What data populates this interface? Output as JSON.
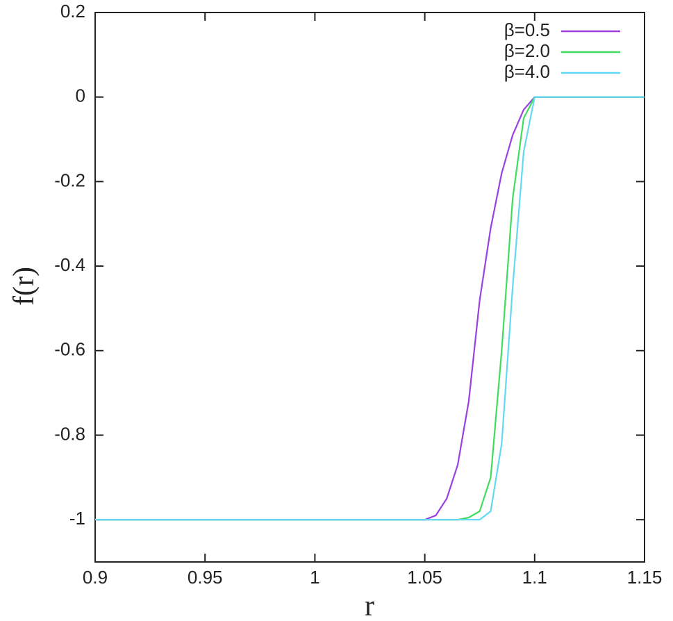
{
  "chart_data": {
    "type": "line",
    "x_label": "r",
    "y_label": "f(r)",
    "x": [
      0.9,
      1.05,
      1.055,
      1.06,
      1.065,
      1.07,
      1.075,
      1.08,
      1.085,
      1.09,
      1.095,
      1.1,
      1.15
    ],
    "series": [
      {
        "name": "β=0.5",
        "color": "#9b3fe0",
        "values": [
          -1,
          -1,
          -0.99,
          -0.95,
          -0.87,
          -0.72,
          -0.48,
          -0.31,
          -0.18,
          -0.09,
          -0.03,
          0,
          0
        ]
      },
      {
        "name": "β=2.0",
        "color": "#3fdc5e",
        "values": [
          -1,
          -1,
          -1,
          -1,
          -1,
          -0.995,
          -0.98,
          -0.9,
          -0.6,
          -0.24,
          -0.05,
          0,
          0
        ]
      },
      {
        "name": "β=4.0",
        "color": "#62d8f2",
        "values": [
          -1,
          -1,
          -1,
          -1,
          -1,
          -1,
          -1,
          -0.98,
          -0.82,
          -0.45,
          -0.13,
          0,
          0
        ]
      }
    ],
    "xlim": [
      0.9,
      1.15
    ],
    "xticks": [
      0.9,
      0.95,
      1,
      1.05,
      1.1,
      1.15
    ],
    "ylim": [
      -1.1,
      0.2
    ],
    "yticks": [
      0.2,
      0,
      -0.2,
      -0.4,
      -0.6,
      -0.8,
      -1
    ],
    "legend": "top-right"
  }
}
